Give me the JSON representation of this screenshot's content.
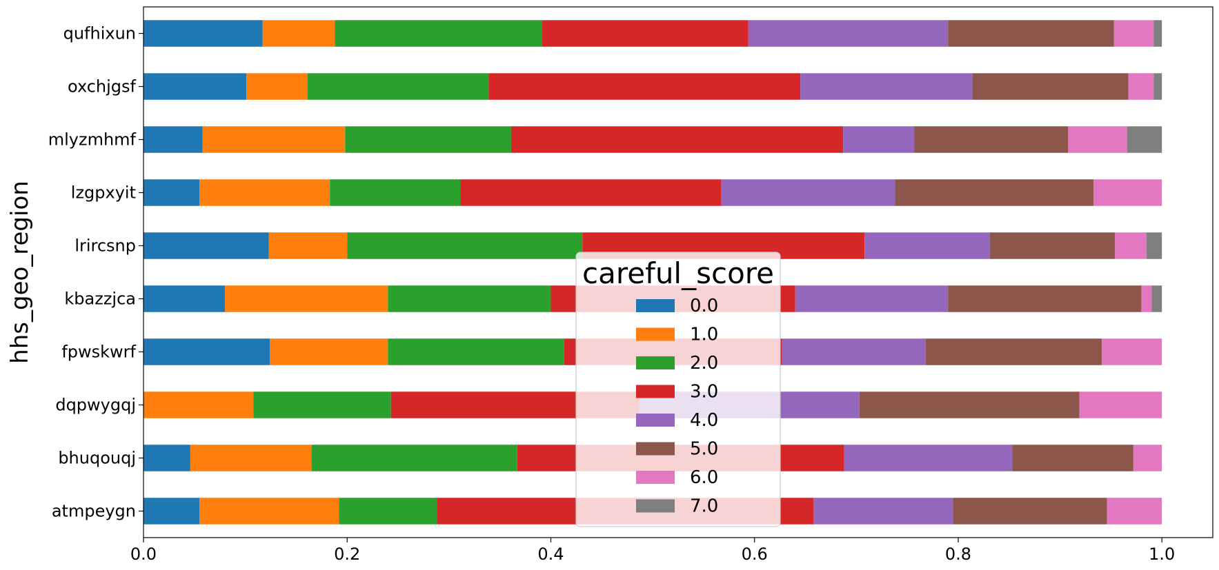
{
  "chart_data": {
    "type": "bar",
    "orientation": "horizontal",
    "stacked": true,
    "ylabel": "hhs_geo_region",
    "xlabel": "",
    "xlim": [
      0.0,
      1.05
    ],
    "xticks": [
      "0.0",
      "0.2",
      "0.4",
      "0.6",
      "0.8",
      "1.0"
    ],
    "xtick_values": [
      0.0,
      0.2,
      0.4,
      0.6,
      0.8,
      1.0
    ],
    "grid": false,
    "legend": {
      "title": "careful_score",
      "placement": "center"
    },
    "categories": [
      "qufhixun",
      "oxchjgsf",
      "mlyzmhmf",
      "lzgpxyit",
      "lrircsnp",
      "kbazzjca",
      "fpwskwrf",
      "dqpwygqj",
      "bhuqouqj",
      "atmpeygn"
    ],
    "series": [
      {
        "name": "0.0",
        "color": "#1f77b4",
        "values": [
          0.117,
          0.101,
          0.058,
          0.055,
          0.123,
          0.08,
          0.124,
          0.0,
          0.046,
          0.055
        ]
      },
      {
        "name": "1.0",
        "color": "#ff7f0e",
        "values": [
          0.071,
          0.06,
          0.14,
          0.128,
          0.077,
          0.16,
          0.116,
          0.108,
          0.119,
          0.137
        ]
      },
      {
        "name": "2.0",
        "color": "#2ca02c",
        "values": [
          0.203,
          0.178,
          0.163,
          0.128,
          0.231,
          0.16,
          0.173,
          0.135,
          0.202,
          0.096
        ]
      },
      {
        "name": "3.0",
        "color": "#d62728",
        "values": [
          0.203,
          0.306,
          0.326,
          0.256,
          0.277,
          0.24,
          0.214,
          0.244,
          0.321,
          0.37
        ]
      },
      {
        "name": "4.0",
        "color": "#9467bd",
        "values": [
          0.196,
          0.169,
          0.07,
          0.171,
          0.123,
          0.15,
          0.141,
          0.216,
          0.165,
          0.137
        ]
      },
      {
        "name": "5.0",
        "color": "#8c564b",
        "values": [
          0.163,
          0.153,
          0.151,
          0.195,
          0.123,
          0.19,
          0.173,
          0.216,
          0.119,
          0.151
        ]
      },
      {
        "name": "6.0",
        "color": "#e377c2",
        "values": [
          0.039,
          0.025,
          0.058,
          0.067,
          0.031,
          0.01,
          0.059,
          0.081,
          0.028,
          0.054
        ]
      },
      {
        "name": "7.0",
        "color": "#7f7f7f",
        "values": [
          0.008,
          0.008,
          0.034,
          0.0,
          0.015,
          0.01,
          0.0,
          0.0,
          0.0,
          0.0
        ]
      }
    ]
  }
}
